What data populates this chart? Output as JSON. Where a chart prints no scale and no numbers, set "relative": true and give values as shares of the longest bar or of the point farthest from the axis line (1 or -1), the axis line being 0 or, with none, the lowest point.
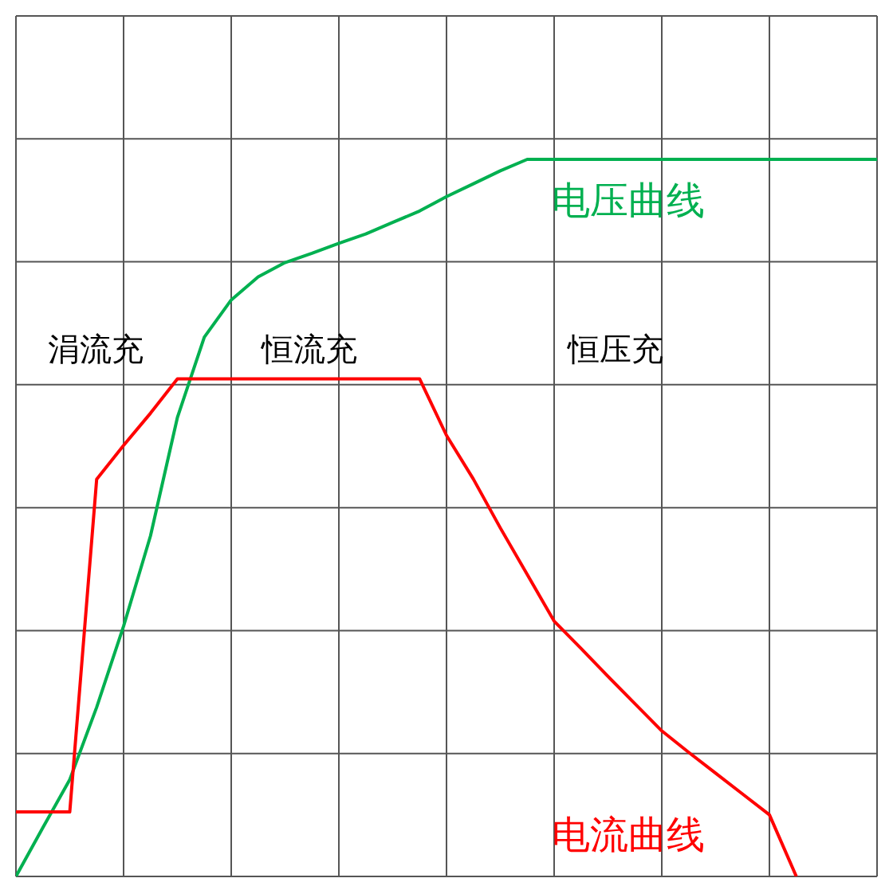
{
  "chart_data": {
    "type": "line",
    "relative": true,
    "grid": true,
    "marker": "none",
    "categories": [
      null,
      null,
      null,
      null,
      null,
      null,
      null,
      null,
      null,
      null,
      null,
      null,
      null,
      null,
      null,
      null,
      null,
      null,
      null,
      null,
      null,
      null,
      null,
      null,
      null,
      null,
      null,
      null,
      null,
      null,
      null,
      null,
      null
    ],
    "series": [
      {
        "name": "电压曲线",
        "color": "#00b050",
        "values": [
          0,
          0.068,
          0.135,
          0.236,
          0.349,
          0.475,
          0.64,
          0.752,
          0.804,
          0.836,
          0.856,
          0.869,
          0.883,
          0.896,
          0.912,
          0.928,
          0.948,
          0.966,
          0.984,
          1,
          1,
          1,
          1,
          1,
          1,
          1,
          1,
          1,
          1,
          1,
          1,
          1,
          1
        ]
      },
      {
        "name": "电流曲线",
        "color": "#ff0000",
        "values": [
          0.09,
          0.09,
          0.09,
          0.554,
          0.601,
          0.646,
          0.694,
          0.694,
          0.694,
          0.694,
          0.694,
          0.694,
          0.694,
          0.694,
          0.694,
          0.694,
          0.615,
          0.554,
          0.486,
          0.421,
          0.356,
          0.318,
          0.279,
          0.241,
          0.203,
          0.173,
          0.144,
          0.115,
          0.086,
          0,
          null,
          null,
          null
        ]
      }
    ],
    "annotations": [
      "涓流充",
      "恒流充",
      "恒压充"
    ]
  }
}
